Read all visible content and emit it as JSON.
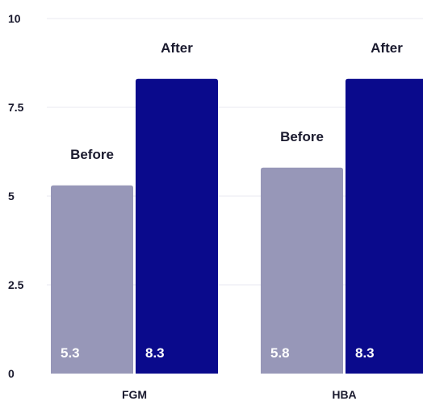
{
  "chart_data": {
    "type": "bar",
    "categories": [
      "FGM",
      "HBA"
    ],
    "series": [
      {
        "name": "Before",
        "values": [
          5.3,
          5.8
        ],
        "color": "#9797b8"
      },
      {
        "name": "After",
        "values": [
          8.3,
          8.3
        ],
        "color": "#0a0a8c"
      }
    ],
    "data_labels": [
      [
        "5.3",
        "5.8"
      ],
      [
        "8.3",
        "8.3"
      ]
    ],
    "y_ticks": [
      {
        "value": 0,
        "label": "0"
      },
      {
        "value": 2.5,
        "label": "2.5"
      },
      {
        "value": 5,
        "label": "5"
      },
      {
        "value": 7.5,
        "label": "7.5"
      },
      {
        "value": 10,
        "label": "10"
      }
    ],
    "ylim": [
      0,
      10
    ],
    "grid": true,
    "legend": "none (series names drawn above bars)",
    "title": "",
    "xlabel": "",
    "ylabel": ""
  }
}
